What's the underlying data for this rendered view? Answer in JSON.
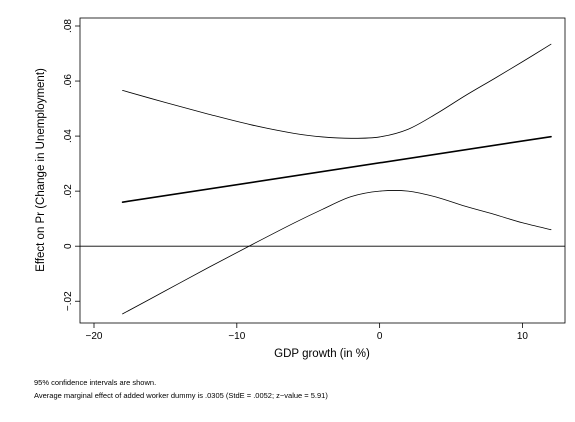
{
  "chart_data": {
    "type": "line",
    "xlabel": "GDP growth (in %)",
    "ylabel": "Effect on Pr (Change in Unemployment)",
    "xlim": [
      -20,
      12
    ],
    "ylim": [
      -0.025,
      0.08
    ],
    "xticks": [
      -20,
      -10,
      0,
      10
    ],
    "xtick_labels": [
      "−20",
      "−10",
      "0",
      "10"
    ],
    "yticks": [
      -0.02,
      0,
      0.02,
      0.04,
      0.06,
      0.08
    ],
    "ytick_labels": [
      "−.02",
      "0",
      ".02",
      ".04",
      ".06",
      ".08"
    ],
    "reference_line_y": 0,
    "grid": false,
    "legend": "none",
    "series": [
      {
        "x": [
          -18,
          12
        ],
        "values": [
          0.016,
          0.0398
        ],
        "color": "#000000",
        "style": "bold"
      },
      {
        "x": [
          -18,
          -15,
          -12,
          -9,
          -6,
          -4,
          -2,
          0,
          2,
          4,
          6,
          8,
          10,
          12
        ],
        "values": [
          0.0566,
          0.0522,
          0.048,
          0.0441,
          0.041,
          0.0397,
          0.0392,
          0.0397,
          0.0425,
          0.0482,
          0.0547,
          0.0608,
          0.067,
          0.0734
        ],
        "color": "#000000",
        "style": "thin"
      },
      {
        "x": [
          -18,
          -15,
          -12,
          -9,
          -6,
          -4,
          -2,
          0,
          2,
          4,
          6,
          8,
          10,
          12
        ],
        "values": [
          -0.0246,
          -0.0162,
          -0.0078,
          0.0004,
          0.0084,
          0.0134,
          0.018,
          0.02,
          0.02,
          0.0178,
          0.0145,
          0.0116,
          0.0085,
          0.006
        ],
        "color": "#000000",
        "style": "thin"
      }
    ]
  },
  "notes": {
    "line1": "95% confidence intervals are shown.",
    "line2": "Average marginal effect of added worker dummy is .0305 (StdE = .0052; z−value = 5.91)"
  }
}
